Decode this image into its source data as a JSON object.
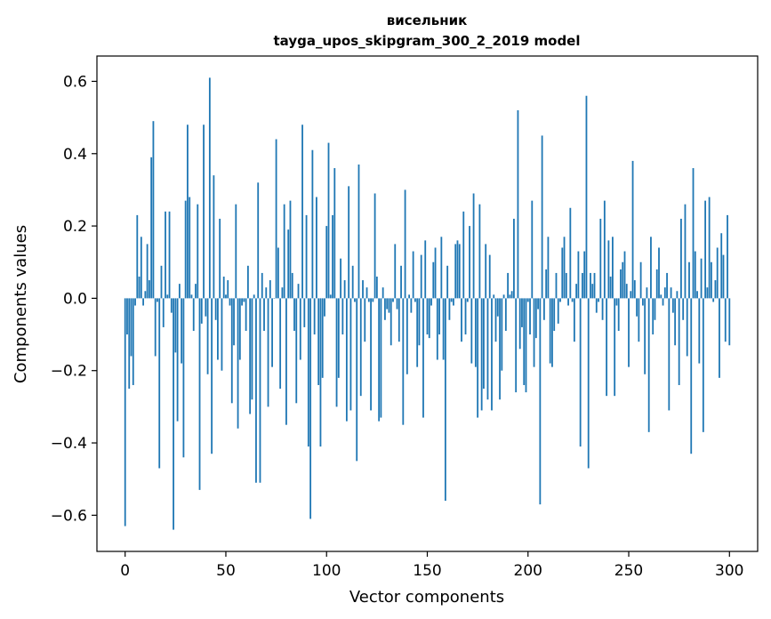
{
  "chart_data": {
    "type": "bar",
    "title": "висельник",
    "subtitle": "tayga_upos_skipgram_300_2_2019 model",
    "xlabel": "Vector components",
    "ylabel": "Components values",
    "xlim": [
      -14,
      314
    ],
    "ylim": [
      -0.7,
      0.67
    ],
    "xticks": [
      0,
      50,
      100,
      150,
      200,
      250,
      300
    ],
    "yticks": [
      -0.6,
      -0.4,
      -0.2,
      0.0,
      0.2,
      0.4,
      0.6
    ],
    "xtick_labels": [
      "0",
      "50",
      "100",
      "150",
      "200",
      "250",
      "300"
    ],
    "ytick_labels": [
      "−0.6",
      "−0.4",
      "−0.2",
      "0.0",
      "0.2",
      "0.4",
      "0.6"
    ],
    "bar_color": "#1f77b4",
    "grid": false,
    "values": [
      -0.63,
      -0.1,
      -0.25,
      -0.16,
      -0.24,
      -0.02,
      0.23,
      0.06,
      0.17,
      -0.02,
      0.02,
      0.15,
      0.05,
      0.39,
      0.49,
      -0.16,
      -0.01,
      -0.47,
      0.09,
      -0.08,
      0.24,
      0.01,
      0.24,
      -0.04,
      -0.64,
      -0.15,
      -0.34,
      0.04,
      -0.18,
      -0.44,
      0.27,
      0.48,
      0.28,
      0.01,
      -0.09,
      0.04,
      0.26,
      -0.53,
      -0.07,
      0.48,
      -0.05,
      -0.21,
      0.61,
      -0.43,
      0.34,
      -0.06,
      -0.17,
      0.22,
      -0.2,
      0.06,
      0.01,
      0.05,
      -0.02,
      -0.29,
      -0.13,
      0.26,
      -0.36,
      -0.17,
      -0.02,
      -0.01,
      -0.09,
      0.09,
      -0.32,
      -0.28,
      0.01,
      -0.51,
      0.32,
      -0.51,
      0.07,
      -0.09,
      0.03,
      -0.3,
      0.05,
      -0.19,
      0.0,
      0.44,
      0.14,
      -0.25,
      0.03,
      0.26,
      -0.35,
      0.19,
      0.27,
      0.07,
      -0.09,
      -0.29,
      0.04,
      -0.17,
      0.48,
      -0.08,
      0.23,
      -0.41,
      -0.61,
      0.41,
      -0.1,
      0.28,
      -0.24,
      -0.41,
      -0.22,
      -0.05,
      0.2,
      0.43,
      0.01,
      0.23,
      0.36,
      -0.3,
      -0.22,
      0.11,
      -0.1,
      0.05,
      -0.34,
      0.31,
      -0.31,
      0.09,
      -0.01,
      -0.45,
      0.37,
      -0.27,
      0.05,
      -0.12,
      0.03,
      -0.01,
      -0.31,
      -0.01,
      0.29,
      0.06,
      -0.34,
      -0.33,
      0.03,
      -0.06,
      -0.03,
      -0.04,
      -0.13,
      -0.01,
      0.15,
      -0.03,
      -0.12,
      0.09,
      -0.35,
      0.3,
      -0.21,
      0.01,
      -0.04,
      0.13,
      -0.01,
      -0.19,
      -0.13,
      0.12,
      -0.33,
      0.16,
      -0.1,
      -0.11,
      -0.02,
      0.1,
      0.14,
      -0.17,
      -0.1,
      0.17,
      -0.17,
      -0.56,
      0.09,
      -0.06,
      -0.01,
      -0.02,
      0.15,
      0.16,
      0.15,
      -0.12,
      0.24,
      -0.1,
      -0.01,
      0.2,
      -0.18,
      0.29,
      -0.19,
      -0.33,
      0.26,
      -0.31,
      -0.25,
      0.15,
      -0.28,
      0.12,
      -0.31,
      0.01,
      -0.12,
      -0.05,
      -0.28,
      -0.2,
      0.01,
      -0.09,
      0.07,
      0.01,
      0.02,
      0.22,
      -0.26,
      0.52,
      -0.14,
      -0.08,
      -0.24,
      -0.26,
      -0.01,
      -0.1,
      0.27,
      -0.19,
      -0.11,
      -0.03,
      -0.57,
      0.45,
      -0.06,
      0.08,
      0.17,
      -0.18,
      -0.19,
      -0.09,
      0.07,
      -0.07,
      -0.01,
      0.14,
      0.17,
      0.07,
      -0.02,
      0.25,
      -0.01,
      -0.12,
      0.04,
      0.13,
      -0.41,
      0.07,
      0.13,
      0.56,
      -0.47,
      0.07,
      0.04,
      0.07,
      -0.04,
      -0.01,
      0.22,
      -0.06,
      0.27,
      -0.27,
      0.16,
      0.06,
      0.17,
      -0.27,
      -0.02,
      -0.09,
      0.08,
      0.1,
      0.13,
      0.04,
      -0.19,
      0.02,
      0.38,
      0.05,
      -0.05,
      -0.12,
      0.1,
      -0.02,
      -0.21,
      0.03,
      -0.37,
      0.17,
      -0.1,
      -0.06,
      0.08,
      0.14,
      0.01,
      -0.02,
      0.03,
      0.07,
      -0.31,
      0.03,
      -0.04,
      -0.13,
      0.02,
      -0.24,
      0.22,
      -0.06,
      0.26,
      -0.16,
      0.1,
      -0.43,
      0.36,
      0.13,
      0.02,
      -0.18,
      0.11,
      -0.37,
      0.27,
      0.03,
      0.28,
      0.1,
      -0.01,
      0.05,
      0.14,
      -0.22,
      0.18,
      0.12,
      -0.12,
      0.23,
      -0.13
    ]
  }
}
